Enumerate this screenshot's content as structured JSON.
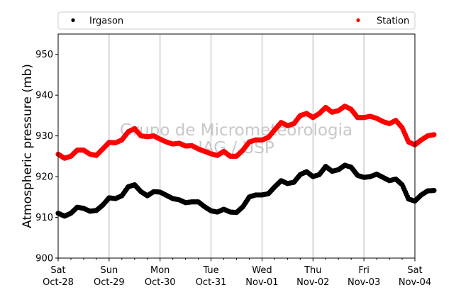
{
  "chart_data": {
    "type": "scatter",
    "title": "",
    "xlabel": "",
    "ylabel": "Atmospheric pressure (mb)",
    "ylim": [
      900,
      955
    ],
    "yticks": [
      900,
      910,
      920,
      930,
      940,
      950
    ],
    "grid": "vertical lines at day ticks",
    "legend_placement": "top",
    "watermark": [
      "Grupo de Micrometeorologia",
      "IAG / USP"
    ],
    "x_ticks": [
      {
        "day": "Sat",
        "date": "Oct-28"
      },
      {
        "day": "Sun",
        "date": "Oct-29"
      },
      {
        "day": "Mon",
        "date": "Oct-30"
      },
      {
        "day": "Tue",
        "date": "Oct-31"
      },
      {
        "day": "Wed",
        "date": "Nov-01"
      },
      {
        "day": "Thu",
        "date": "Nov-02"
      },
      {
        "day": "Fri",
        "date": "Nov-03"
      },
      {
        "day": "Sat",
        "date": "Nov-04"
      }
    ],
    "series": [
      {
        "name": "Irgason",
        "color": "#000000",
        "points": [
          [
            0.0,
            911.0
          ],
          [
            0.125,
            910.3
          ],
          [
            0.25,
            911.0
          ],
          [
            0.375,
            912.5
          ],
          [
            0.5,
            912.2
          ],
          [
            0.625,
            911.5
          ],
          [
            0.75,
            911.7
          ],
          [
            0.875,
            913.0
          ],
          [
            1.0,
            914.8
          ],
          [
            1.125,
            914.6
          ],
          [
            1.25,
            915.3
          ],
          [
            1.375,
            917.5
          ],
          [
            1.5,
            918.0
          ],
          [
            1.625,
            916.3
          ],
          [
            1.75,
            915.3
          ],
          [
            1.875,
            916.3
          ],
          [
            2.0,
            916.2
          ],
          [
            2.125,
            915.4
          ],
          [
            2.25,
            914.6
          ],
          [
            2.375,
            914.3
          ],
          [
            2.5,
            913.6
          ],
          [
            2.625,
            913.8
          ],
          [
            2.75,
            913.8
          ],
          [
            2.875,
            912.6
          ],
          [
            3.0,
            911.6
          ],
          [
            3.125,
            911.3
          ],
          [
            3.25,
            912.0
          ],
          [
            3.375,
            911.3
          ],
          [
            3.5,
            911.2
          ],
          [
            3.625,
            912.6
          ],
          [
            3.75,
            915.0
          ],
          [
            3.875,
            915.5
          ],
          [
            4.0,
            915.5
          ],
          [
            4.125,
            915.8
          ],
          [
            4.25,
            917.5
          ],
          [
            4.375,
            919.0
          ],
          [
            4.5,
            918.3
          ],
          [
            4.625,
            918.6
          ],
          [
            4.75,
            920.5
          ],
          [
            4.875,
            921.2
          ],
          [
            5.0,
            920.0
          ],
          [
            5.125,
            920.5
          ],
          [
            5.25,
            922.5
          ],
          [
            5.375,
            921.3
          ],
          [
            5.5,
            921.7
          ],
          [
            5.625,
            922.8
          ],
          [
            5.75,
            922.3
          ],
          [
            5.875,
            920.3
          ],
          [
            6.0,
            919.8
          ],
          [
            6.125,
            920.0
          ],
          [
            6.25,
            920.6
          ],
          [
            6.375,
            919.8
          ],
          [
            6.5,
            919.0
          ],
          [
            6.625,
            919.4
          ],
          [
            6.75,
            918.0
          ],
          [
            6.875,
            914.5
          ],
          [
            7.0,
            914.0
          ],
          [
            7.125,
            915.5
          ],
          [
            7.25,
            916.5
          ],
          [
            7.375,
            916.6
          ]
        ]
      },
      {
        "name": "Station",
        "color": "#ff0000",
        "points": [
          [
            0.0,
            925.5
          ],
          [
            0.125,
            924.5
          ],
          [
            0.25,
            925.0
          ],
          [
            0.375,
            926.5
          ],
          [
            0.5,
            926.5
          ],
          [
            0.625,
            925.5
          ],
          [
            0.75,
            925.2
          ],
          [
            0.875,
            926.8
          ],
          [
            1.0,
            928.4
          ],
          [
            1.125,
            928.3
          ],
          [
            1.25,
            929.0
          ],
          [
            1.375,
            931.0
          ],
          [
            1.5,
            931.8
          ],
          [
            1.625,
            930.0
          ],
          [
            1.75,
            929.8
          ],
          [
            1.875,
            930.0
          ],
          [
            2.0,
            929.2
          ],
          [
            2.125,
            928.5
          ],
          [
            2.25,
            928.0
          ],
          [
            2.375,
            928.2
          ],
          [
            2.5,
            927.5
          ],
          [
            2.625,
            927.6
          ],
          [
            2.75,
            926.8
          ],
          [
            2.875,
            926.2
          ],
          [
            3.0,
            925.6
          ],
          [
            3.125,
            925.2
          ],
          [
            3.25,
            926.2
          ],
          [
            3.375,
            925.0
          ],
          [
            3.5,
            925.0
          ],
          [
            3.625,
            926.5
          ],
          [
            3.75,
            928.5
          ],
          [
            3.875,
            929.0
          ],
          [
            4.0,
            929.0
          ],
          [
            4.125,
            929.6
          ],
          [
            4.25,
            931.5
          ],
          [
            4.375,
            933.3
          ],
          [
            4.5,
            932.5
          ],
          [
            4.625,
            933.0
          ],
          [
            4.75,
            935.0
          ],
          [
            4.875,
            935.5
          ],
          [
            5.0,
            934.5
          ],
          [
            5.125,
            935.5
          ],
          [
            5.25,
            937.0
          ],
          [
            5.375,
            935.8
          ],
          [
            5.5,
            936.2
          ],
          [
            5.625,
            937.3
          ],
          [
            5.75,
            936.5
          ],
          [
            5.875,
            934.5
          ],
          [
            6.0,
            934.5
          ],
          [
            6.125,
            934.8
          ],
          [
            6.25,
            934.3
          ],
          [
            6.375,
            933.5
          ],
          [
            6.5,
            933.0
          ],
          [
            6.625,
            933.8
          ],
          [
            6.75,
            932.0
          ],
          [
            6.875,
            928.5
          ],
          [
            7.0,
            927.8
          ],
          [
            7.125,
            929.0
          ],
          [
            7.25,
            930.0
          ],
          [
            7.375,
            930.3
          ]
        ]
      }
    ]
  }
}
